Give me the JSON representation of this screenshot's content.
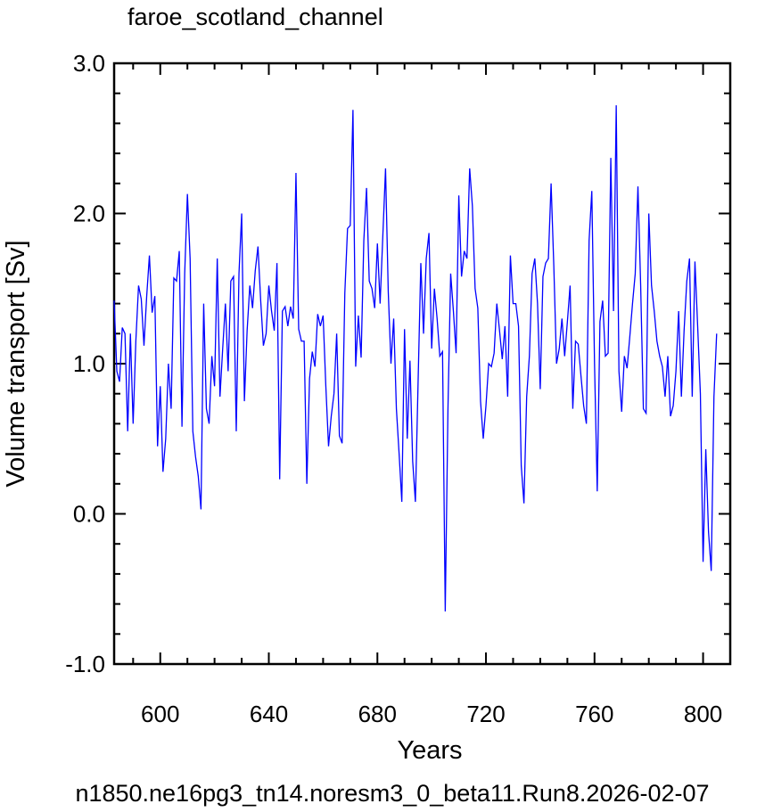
{
  "chart_data": {
    "type": "line",
    "title": "faroe_scotland_channel",
    "xlabel": "Years",
    "ylabel": "Volume transport [Sv]",
    "footer": "n1850.ne16pg3_tn14.noresm3_0_beta11.Run8.2026-02-07",
    "xlim": [
      583,
      810
    ],
    "ylim": [
      -1.0,
      3.0
    ],
    "x_ticks": [
      600,
      640,
      680,
      720,
      760,
      800
    ],
    "x_tick_labels": [
      "600",
      "640",
      "680",
      "720",
      "760",
      "800"
    ],
    "y_ticks": [
      -1.0,
      0.0,
      1.0,
      2.0,
      3.0
    ],
    "y_tick_labels": [
      "-1.0",
      "0.0",
      "1.0",
      "2.0",
      "3.0"
    ],
    "grid": false,
    "line_color": "#0000ff",
    "series": [
      {
        "x_start": 583,
        "x_step": 1,
        "values": [
          1.42,
          0.95,
          0.88,
          1.24,
          1.2,
          0.55,
          1.2,
          0.6,
          1.15,
          1.52,
          1.43,
          1.12,
          1.45,
          1.72,
          1.34,
          1.45,
          0.45,
          0.85,
          0.28,
          0.5,
          1.0,
          0.7,
          1.57,
          1.55,
          1.75,
          0.58,
          1.6,
          2.13,
          1.7,
          0.55,
          0.38,
          0.25,
          0.03,
          1.4,
          0.7,
          0.6,
          1.05,
          0.85,
          1.7,
          0.78,
          1.1,
          1.4,
          0.95,
          1.55,
          1.58,
          0.55,
          1.6,
          2.0,
          0.75,
          1.22,
          1.52,
          1.37,
          1.62,
          1.78,
          1.42,
          1.12,
          1.2,
          1.52,
          1.35,
          1.22,
          1.67,
          0.23,
          1.35,
          1.38,
          1.25,
          1.38,
          1.3,
          2.27,
          1.23,
          1.15,
          1.15,
          0.2,
          0.9,
          1.08,
          0.98,
          1.33,
          1.25,
          1.32,
          0.85,
          0.45,
          0.65,
          0.8,
          1.2,
          0.52,
          0.47,
          1.47,
          1.9,
          1.92,
          2.69,
          0.98,
          1.32,
          1.04,
          1.82,
          2.17,
          1.55,
          1.5,
          1.37,
          1.8,
          1.4,
          1.85,
          2.3,
          1.48,
          1.0,
          1.3,
          0.7,
          0.4,
          0.08,
          1.23,
          0.5,
          1.02,
          0.35,
          0.08,
          0.88,
          1.67,
          1.2,
          1.7,
          1.87,
          1.1,
          1.5,
          1.3,
          1.05,
          1.08,
          -0.65,
          0.7,
          1.6,
          1.35,
          1.07,
          2.12,
          1.58,
          1.75,
          1.7,
          2.3,
          2.05,
          1.5,
          1.37,
          0.75,
          0.5,
          0.72,
          1.0,
          0.98,
          1.07,
          1.4,
          1.22,
          1.03,
          1.25,
          0.78,
          1.72,
          1.4,
          1.4,
          1.25,
          0.32,
          0.07,
          0.78,
          1.05,
          1.6,
          1.7,
          1.4,
          0.83,
          1.58,
          1.67,
          1.7,
          2.2,
          1.65,
          1.0,
          1.1,
          1.3,
          1.05,
          1.28,
          1.52,
          0.7,
          1.15,
          1.13,
          0.92,
          0.72,
          0.6,
          1.82,
          2.15,
          1.0,
          0.15,
          1.28,
          1.42,
          1.05,
          1.07,
          2.37,
          1.35,
          2.72,
          0.95,
          0.68,
          1.05,
          0.97,
          1.18,
          1.4,
          1.6,
          2.18,
          1.52,
          0.7,
          0.67,
          2.0,
          1.52,
          1.35,
          1.15,
          1.05,
          0.98,
          0.78,
          1.05,
          0.65,
          0.72,
          0.95,
          1.35,
          0.78,
          1.22,
          1.55,
          1.7,
          0.78,
          1.68,
          1.25,
          0.8,
          -0.32,
          0.43,
          -0.12,
          -0.38,
          0.78,
          1.2
        ]
      }
    ]
  }
}
